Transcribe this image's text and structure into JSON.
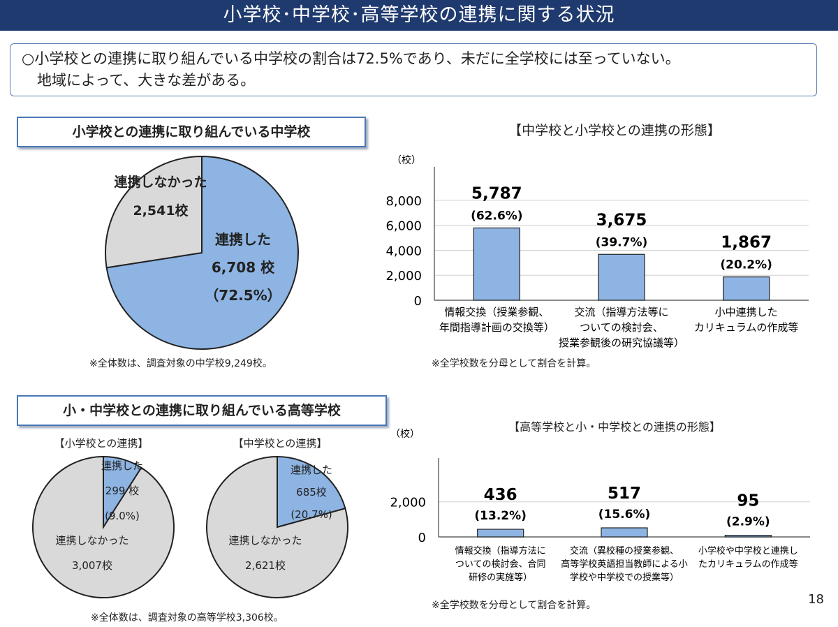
{
  "page": {
    "title": "小学校･中学校･高等学校の連携に関する状況",
    "summary_line1": "○小学校との連携に取り組んでいる中学校の割合は72.5%であり、未だに全学校には至っていない。",
    "summary_line2": "地域によって、大きな差がある。",
    "page_number": "18"
  },
  "sections": {
    "middle_title": "小学校との連携に取り組んでいる中学校",
    "high_title": "小・中学校との連携に取り組んでいる高等学校"
  },
  "notes": {
    "middle_total": "※全体数は、調査対象の中学校9,249校。",
    "high_total": "※全体数は、調査対象の高等学校3,306校。",
    "ratio_note_top": "※全学校数を分母として割合を計算。",
    "ratio_note_bottom": "※全学校数を分母として割合を計算。"
  },
  "colors": {
    "connected": "#8db4e2",
    "not_connected": "#d9d9d9",
    "accent": "#1f3a6e"
  },
  "chart_data": [
    {
      "type": "pie",
      "categories": [
        "連携した",
        "連携しなかった"
      ],
      "values": [
        6708,
        2541
      ],
      "labels": [
        [
          "連携した",
          "6,708 校",
          "（72.5%）"
        ],
        [
          "連携しなかった",
          "2,541校"
        ]
      ]
    },
    {
      "type": "bar",
      "title": "【中学校と小学校との連携の形態】",
      "ylabel": "（校）",
      "ylim": [
        0,
        9000
      ],
      "yticks": [
        0,
        2000,
        4000,
        6000,
        8000
      ],
      "ytick_labels": [
        "0",
        "2,000",
        "4,000",
        "6,000",
        "8,000"
      ],
      "categories": [
        [
          "情報交換（授業参観、",
          "年間指導計画の交換等）"
        ],
        [
          "交流（指導方法等に",
          "ついての検討会、",
          "授業参観後の研究協議等）"
        ],
        [
          "小中連携した",
          "カリキュラムの作成等"
        ]
      ],
      "values": [
        5787,
        3675,
        1867
      ],
      "value_labels": [
        "5,787",
        "3,675",
        "1,867"
      ],
      "pct_labels": [
        "(62.6%)",
        "(39.7%)",
        "(20.2%)"
      ],
      "grid": true
    },
    {
      "type": "pie",
      "title": "【小学校との連携】",
      "categories": [
        "連携した",
        "連携しなかった"
      ],
      "values": [
        299,
        3007
      ],
      "labels": [
        [
          "連携した",
          "299 校",
          "(9.0%)"
        ],
        [
          "連携しなかった",
          "3,007校"
        ]
      ]
    },
    {
      "type": "pie",
      "title": "【中学校との連携】",
      "categories": [
        "連携した",
        "連携しなかった"
      ],
      "values": [
        685,
        2621
      ],
      "labels": [
        [
          "連携した",
          "685校",
          "(20.7%)"
        ],
        [
          "連携しなかった",
          "2,621校"
        ]
      ]
    },
    {
      "type": "bar",
      "title": "【高等学校と小・中学校との連携の形態】",
      "ylabel": "（校）",
      "ylim": [
        0,
        3300
      ],
      "yticks": [
        0,
        2000
      ],
      "ytick_labels": [
        "0",
        "2,000"
      ],
      "categories": [
        [
          "情報交換（指導方法に",
          "ついての検討会、合同",
          "研修の実施等）"
        ],
        [
          "交流（異校種の授業参観、",
          "高等学校英語担当教師による小",
          "学校や中学校での授業等）"
        ],
        [
          "小学校や中学校と連携し",
          "たカリキュラムの作成等"
        ]
      ],
      "values": [
        436,
        517,
        95
      ],
      "value_labels": [
        "436",
        "517",
        "95"
      ],
      "pct_labels": [
        "(13.2%)",
        "(15.6%)",
        "(2.9%)"
      ],
      "grid": true
    }
  ]
}
